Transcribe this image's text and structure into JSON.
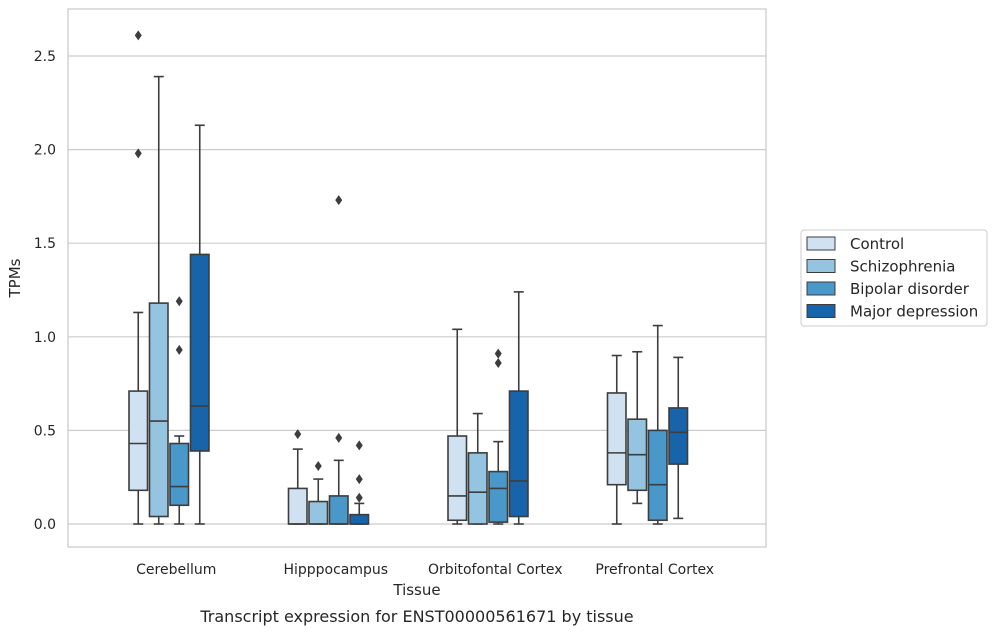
{
  "chart_data": {
    "type": "box",
    "caption": "Transcript expression for ENST00000561671 by tissue",
    "xlabel": "Tissue",
    "ylabel": "TPMs",
    "ylim": [
      -0.13,
      2.76
    ],
    "yticks": [
      "0.0",
      "0.5",
      "1.0",
      "1.5",
      "2.0",
      "2.5"
    ],
    "grid": true,
    "legend_position": "right",
    "categories": [
      "Cerebellum",
      "Hipppocampus",
      "Orbitofontal Cortex",
      "Prefrontal Cortex"
    ],
    "series": [
      {
        "name": "Control",
        "color": "#d0e1f2",
        "boxes": [
          {
            "whislo": 0.0,
            "q1": 0.18,
            "med": 0.43,
            "q3": 0.71,
            "whishi": 1.13,
            "fliers": [
              2.61,
              1.98
            ]
          },
          {
            "whislo": 0.0,
            "q1": 0.0,
            "med": 0.0,
            "q3": 0.19,
            "whishi": 0.4,
            "fliers": [
              0.48
            ]
          },
          {
            "whislo": 0.0,
            "q1": 0.02,
            "med": 0.15,
            "q3": 0.47,
            "whishi": 1.04,
            "fliers": []
          },
          {
            "whislo": 0.0,
            "q1": 0.21,
            "med": 0.38,
            "q3": 0.7,
            "whishi": 0.9,
            "fliers": []
          }
        ]
      },
      {
        "name": "Schizophrenia",
        "color": "#94c4df",
        "boxes": [
          {
            "whislo": 0.0,
            "q1": 0.04,
            "med": 0.55,
            "q3": 1.18,
            "whishi": 2.39,
            "fliers": []
          },
          {
            "whislo": 0.0,
            "q1": 0.0,
            "med": 0.0,
            "q3": 0.12,
            "whishi": 0.24,
            "fliers": [
              0.31
            ]
          },
          {
            "whislo": 0.0,
            "q1": 0.0,
            "med": 0.17,
            "q3": 0.38,
            "whishi": 0.59,
            "fliers": []
          },
          {
            "whislo": 0.11,
            "q1": 0.18,
            "med": 0.37,
            "q3": 0.56,
            "whishi": 0.92,
            "fliers": []
          }
        ]
      },
      {
        "name": "Bipolar disorder",
        "color": "#4a98c9",
        "boxes": [
          {
            "whislo": 0.0,
            "q1": 0.1,
            "med": 0.2,
            "q3": 0.43,
            "whishi": 0.47,
            "fliers": [
              1.19,
              0.93
            ]
          },
          {
            "whislo": 0.0,
            "q1": 0.0,
            "med": 0.0,
            "q3": 0.15,
            "whishi": 0.34,
            "fliers": [
              0.46,
              1.73
            ]
          },
          {
            "whislo": 0.0,
            "q1": 0.01,
            "med": 0.19,
            "q3": 0.28,
            "whishi": 0.44,
            "fliers": [
              0.91,
              0.86
            ]
          },
          {
            "whislo": 0.0,
            "q1": 0.02,
            "med": 0.21,
            "q3": 0.5,
            "whishi": 1.06,
            "fliers": []
          }
        ]
      },
      {
        "name": "Major depression",
        "color": "#1764ab",
        "boxes": [
          {
            "whislo": 0.0,
            "q1": 0.39,
            "med": 0.63,
            "q3": 1.44,
            "whishi": 2.13,
            "fliers": []
          },
          {
            "whislo": 0.0,
            "q1": 0.0,
            "med": 0.0,
            "q3": 0.05,
            "whishi": 0.11,
            "fliers": [
              0.42,
              0.24,
              0.14
            ]
          },
          {
            "whislo": 0.0,
            "q1": 0.04,
            "med": 0.23,
            "q3": 0.71,
            "whishi": 1.24,
            "fliers": []
          },
          {
            "whislo": 0.03,
            "q1": 0.32,
            "med": 0.49,
            "q3": 0.62,
            "whishi": 0.89,
            "fliers": []
          }
        ]
      }
    ]
  }
}
